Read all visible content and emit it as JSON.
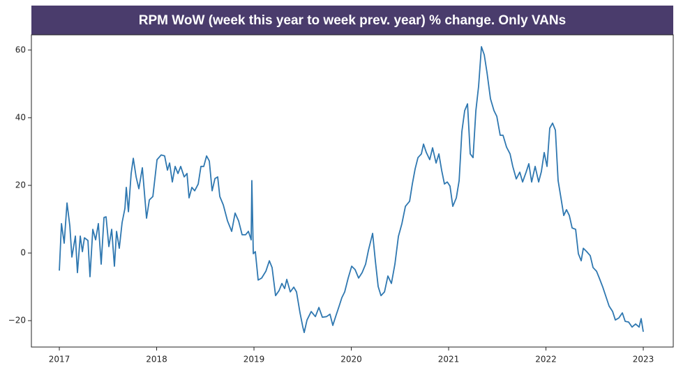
{
  "chart_data": {
    "type": "line",
    "title": "RPM WoW (week this year to week prev. year) % change. Only VANs",
    "xlim": [
      2016.713,
      2023.308
    ],
    "xticks": [
      2017,
      2018,
      2019,
      2020,
      2021,
      2022,
      2023
    ],
    "ylim": [
      -27.8,
      64.5
    ],
    "yticks": [
      {
        "value": -20,
        "label": "−20"
      },
      0,
      20,
      40,
      60
    ],
    "grid": false,
    "x": [
      2017.0,
      2017.022,
      2017.05,
      2017.079,
      2017.108,
      2017.129,
      2017.165,
      2017.186,
      2017.215,
      2017.237,
      2017.258,
      2017.294,
      2017.315,
      2017.344,
      2017.373,
      2017.401,
      2017.43,
      2017.459,
      2017.48,
      2017.509,
      2017.538,
      2017.566,
      2017.588,
      2017.616,
      2017.645,
      2017.674,
      2017.688,
      2017.71,
      2017.738,
      2017.76,
      2017.789,
      2017.817,
      2017.853,
      2017.896,
      2017.925,
      2017.961,
      2018.004,
      2018.047,
      2018.082,
      2018.111,
      2018.133,
      2018.161,
      2018.19,
      2018.219,
      2018.247,
      2018.283,
      2018.312,
      2018.333,
      2018.362,
      2018.391,
      2018.427,
      2018.455,
      2018.484,
      2018.513,
      2018.541,
      2018.57,
      2018.599,
      2018.627,
      2018.649,
      2018.685,
      2018.728,
      2018.771,
      2018.806,
      2018.842,
      2018.878,
      2018.914,
      2018.943,
      2018.971,
      2018.978,
      2018.993,
      2019.014,
      2019.043,
      2019.079,
      2019.122,
      2019.158,
      2019.186,
      2019.222,
      2019.258,
      2019.287,
      2019.315,
      2019.337,
      2019.373,
      2019.409,
      2019.437,
      2019.473,
      2019.502,
      2019.516,
      2019.545,
      2019.588,
      2019.631,
      2019.667,
      2019.703,
      2019.746,
      2019.781,
      2019.81,
      2019.839,
      2019.875,
      2019.903,
      2019.932,
      2019.968,
      2020.004,
      2020.039,
      2020.075,
      2020.111,
      2020.147,
      2020.176,
      2020.219,
      2020.247,
      2020.276,
      2020.305,
      2020.341,
      2020.376,
      2020.412,
      2020.448,
      2020.484,
      2020.52,
      2020.556,
      2020.599,
      2020.627,
      2020.656,
      2020.685,
      2020.72,
      2020.742,
      2020.771,
      2020.806,
      2020.835,
      2020.871,
      2020.9,
      2020.928,
      2020.957,
      2020.986,
      2021.014,
      2021.043,
      2021.079,
      2021.108,
      2021.136,
      2021.165,
      2021.194,
      2021.222,
      2021.251,
      2021.28,
      2021.308,
      2021.337,
      2021.366,
      2021.394,
      2021.43,
      2021.466,
      2021.495,
      2021.53,
      2021.559,
      2021.595,
      2021.631,
      2021.659,
      2021.695,
      2021.731,
      2021.76,
      2021.796,
      2021.824,
      2021.853,
      2021.889,
      2021.925,
      2021.953,
      2021.982,
      2022.011,
      2022.039,
      2022.068,
      2022.097,
      2022.125,
      2022.154,
      2022.183,
      2022.211,
      2022.24,
      2022.269,
      2022.305,
      2022.333,
      2022.362,
      2022.384,
      2022.419,
      2022.455,
      2022.484,
      2022.52,
      2022.548,
      2022.584,
      2022.62,
      2022.649,
      2022.685,
      2022.713,
      2022.749,
      2022.785,
      2022.814,
      2022.849,
      2022.885,
      2022.921,
      2022.957,
      2022.978,
      2023.0
    ],
    "series": [
      {
        "color": "#2e77b0",
        "values": [
          -5.2,
          8.7,
          2.9,
          14.8,
          8,
          -1.2,
          5,
          -5.8,
          5,
          0.4,
          4.5,
          3.7,
          -7,
          7,
          3.9,
          8.7,
          -3.3,
          10.5,
          10.7,
          1.9,
          7,
          -3.9,
          6.4,
          1.4,
          9,
          13.2,
          19.4,
          12.2,
          23.5,
          28,
          22.5,
          19,
          25.2,
          10.3,
          15.7,
          16.7,
          27.6,
          29,
          28.7,
          24.5,
          26.6,
          21,
          25.6,
          23.5,
          25.6,
          22.5,
          23.5,
          16.3,
          19.4,
          18.4,
          20.4,
          25.6,
          25.6,
          28.7,
          27.2,
          18.4,
          22,
          22.5,
          16.7,
          14.2,
          9.5,
          6.4,
          11.8,
          9.5,
          5.4,
          5.4,
          6.4,
          3.9,
          21.4,
          -0.2,
          0.4,
          -8,
          -7.4,
          -5.4,
          -2.3,
          -4.3,
          -12.6,
          -11.1,
          -9,
          -10.5,
          -7.8,
          -11.5,
          -10.1,
          -11.5,
          -17.7,
          -21.9,
          -23.5,
          -19.8,
          -17.3,
          -18.8,
          -16.1,
          -19,
          -18.8,
          -18.1,
          -21.4,
          -18.8,
          -15.7,
          -13.2,
          -11.5,
          -7.4,
          -3.9,
          -4.9,
          -7.4,
          -5.8,
          -3.3,
          0.8,
          5.8,
          -2.3,
          -9.9,
          -12.6,
          -11.5,
          -6.8,
          -9,
          -3.3,
          4.9,
          8.7,
          13.8,
          15.3,
          20.4,
          24.9,
          28.2,
          29.3,
          32.2,
          29.7,
          27.6,
          31.1,
          26.6,
          29.3,
          24.5,
          20.4,
          21,
          19.8,
          13.8,
          16.3,
          21.4,
          35.9,
          42.1,
          44.1,
          29.3,
          28.2,
          42.1,
          49.3,
          61,
          58.6,
          53.4,
          45.6,
          42.1,
          40.4,
          34.8,
          34.8,
          31.3,
          29.3,
          25.6,
          21.9,
          23.9,
          21,
          23.9,
          26.4,
          21,
          25.6,
          21,
          24.1,
          29.7,
          25.6,
          36.9,
          38.4,
          36.3,
          21.4,
          16.3,
          11.1,
          12.8,
          11.1,
          7.4,
          7,
          -0.2,
          -2.3,
          1.4,
          0.4,
          -0.8,
          -4.3,
          -5.4,
          -7.4,
          -10.1,
          -13.2,
          -15.7,
          -17.3,
          -19.8,
          -19.2,
          -17.7,
          -20.2,
          -20.4,
          -21.9,
          -21,
          -21.9,
          -19.4,
          -23.3
        ]
      }
    ]
  }
}
